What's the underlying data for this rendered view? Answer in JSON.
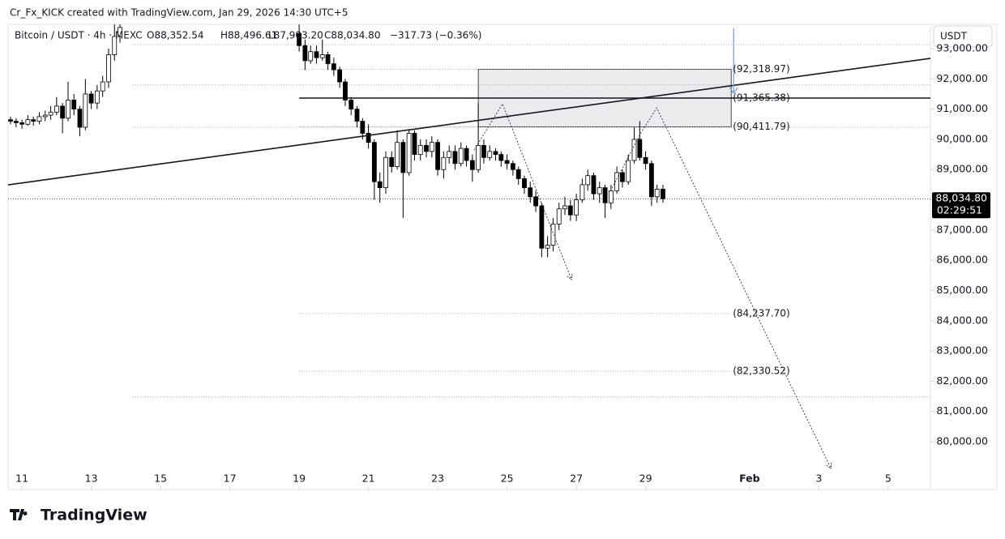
{
  "chart_data": {
    "type": "candlestick",
    "title": "Cr_Fx_KICK created with TradingView.com, Jan 29, 2026 14:30 UTC+5",
    "legend": {
      "symbol": "Bitcoin / USDT · 4h · MEXC",
      "open": "O88,352.54",
      "high": "H88,496.61",
      "low": "L87,903.20",
      "close": "C88,034.80",
      "change": "−317.73 (−0.36%)"
    },
    "currency": "USDT",
    "brand": "TradingView",
    "x": [
      10.67,
      10.83,
      11,
      11.17,
      11.33,
      11.5,
      11.67,
      11.83,
      12,
      12.17,
      12.33,
      12.5,
      12.67,
      12.83,
      13,
      13.17,
      13.33,
      13.5,
      13.67,
      13.83,
      19,
      19.17,
      19.33,
      19.5,
      19.67,
      19.83,
      20,
      20.17,
      20.33,
      20.5,
      20.67,
      20.83,
      21,
      21.17,
      21.33,
      21.5,
      21.67,
      21.83,
      22,
      22.17,
      22.33,
      22.5,
      22.67,
      22.83,
      23,
      23.17,
      23.33,
      23.5,
      23.67,
      23.83,
      24,
      24.17,
      24.33,
      24.5,
      24.67,
      24.83,
      25,
      25.17,
      25.33,
      25.5,
      25.67,
      25.83,
      26,
      26.17,
      26.33,
      26.5,
      26.67,
      26.83,
      27,
      27.17,
      27.33,
      27.5,
      27.67,
      27.83,
      28,
      28.17,
      28.33,
      28.5,
      28.67,
      28.83,
      29,
      29.17,
      29.33,
      29.5
    ],
    "open": [
      90650,
      90600,
      90550,
      90500,
      90650,
      90600,
      90750,
      90800,
      90900,
      91100,
      90700,
      91300,
      91000,
      90400,
      91500,
      91200,
      91600,
      91900,
      92800,
      93400,
      93500,
      93100,
      92600,
      92900,
      92700,
      92800,
      92500,
      92300,
      91900,
      91300,
      91000,
      90600,
      90200,
      89900,
      88600,
      88400,
      89400,
      89100,
      89900,
      88900,
      90200,
      89500,
      89800,
      89600,
      89900,
      89000,
      89400,
      89600,
      89200,
      89700,
      89300,
      89000,
      89800,
      89400,
      89600,
      89500,
      89300,
      89200,
      89000,
      88700,
      88400,
      88100,
      87800,
      86400,
      86500,
      87200,
      87700,
      87800,
      87500,
      88000,
      88500,
      88800,
      88200,
      88400,
      87900,
      88300,
      88900,
      88600,
      89300,
      90000,
      89400,
      89200,
      88100,
      88352.54
    ],
    "high": [
      90750,
      90700,
      90650,
      90800,
      90750,
      90900,
      90950,
      91100,
      91400,
      91200,
      91900,
      91500,
      91100,
      92000,
      91600,
      91800,
      92100,
      93000,
      93900,
      94000,
      93800,
      93300,
      93100,
      93100,
      93300,
      92900,
      92700,
      92400,
      92000,
      91400,
      91100,
      90700,
      90500,
      90000,
      88900,
      89600,
      89600,
      90300,
      90000,
      90300,
      90300,
      90000,
      90000,
      90100,
      90000,
      89600,
      89800,
      89800,
      89900,
      89800,
      89500,
      91200,
      90000,
      89800,
      89700,
      89600,
      89500,
      89300,
      89100,
      88800,
      88600,
      88300,
      87900,
      86800,
      87400,
      87900,
      88100,
      88000,
      88200,
      88700,
      89000,
      88900,
      88600,
      88500,
      88500,
      89100,
      89000,
      89500,
      90400,
      90600,
      89600,
      89300,
      88500,
      88496.61
    ],
    "low": [
      90500,
      90400,
      90350,
      90450,
      90450,
      90500,
      90600,
      90650,
      90800,
      90200,
      90600,
      90800,
      90100,
      90300,
      91000,
      91000,
      91400,
      91700,
      92600,
      93200,
      92900,
      92300,
      92500,
      92500,
      92600,
      92300,
      92100,
      91700,
      91100,
      90800,
      90400,
      90000,
      89700,
      88000,
      87900,
      88200,
      88900,
      89000,
      87400,
      88800,
      89300,
      89300,
      89400,
      89400,
      88800,
      88700,
      89200,
      89000,
      89100,
      89100,
      88600,
      88900,
      89200,
      89300,
      89300,
      89100,
      89000,
      88800,
      88500,
      88200,
      87900,
      87600,
      86100,
      86100,
      86300,
      87000,
      87500,
      87300,
      87300,
      87900,
      88300,
      88000,
      87900,
      87400,
      87700,
      88200,
      88400,
      88500,
      89200,
      89300,
      89000,
      87800,
      87900,
      87903.2
    ],
    "close": [
      90600,
      90550,
      90500,
      90650,
      90600,
      90750,
      90800,
      90900,
      91100,
      90700,
      91300,
      91000,
      90400,
      91500,
      91200,
      91600,
      91900,
      92800,
      93400,
      93700,
      93100,
      92600,
      92900,
      92700,
      92800,
      92500,
      92300,
      91900,
      91300,
      91000,
      90600,
      90200,
      89900,
      88600,
      88400,
      89400,
      89100,
      89900,
      88900,
      90200,
      89500,
      89800,
      89600,
      89900,
      89000,
      89400,
      89600,
      89200,
      89700,
      89300,
      89000,
      89800,
      89400,
      89600,
      89500,
      89300,
      89200,
      89000,
      88700,
      88400,
      88100,
      87800,
      86400,
      86500,
      87200,
      87700,
      87800,
      87500,
      88000,
      88500,
      88800,
      88200,
      88400,
      87900,
      88300,
      88900,
      88600,
      89300,
      90000,
      89400,
      89200,
      88100,
      88350,
      88034.8
    ],
    "up_color": "#ffffff",
    "down_color": "#000000",
    "outline_color": "#000000",
    "xlim": [
      10.6,
      37.22
    ],
    "xticks": [
      11,
      13,
      15,
      17,
      19,
      21,
      23,
      25,
      27,
      29,
      {
        "value": 32,
        "label": "Feb"
      },
      {
        "value": 34,
        "label": "3"
      },
      {
        "value": 36,
        "label": "5"
      }
    ],
    "ylim": [
      78794,
      93804
    ],
    "yticks": [
      {
        "value": 80000,
        "label": "80,000.00"
      },
      {
        "value": 81000,
        "label": "81,000.00"
      },
      {
        "value": 82000,
        "label": "82,000.00"
      },
      {
        "value": 83000,
        "label": "83,000.00"
      },
      {
        "value": 84000,
        "label": "84,000.00"
      },
      {
        "value": 85000,
        "label": "85,000.00"
      },
      {
        "value": 86000,
        "label": "86,000.00"
      },
      {
        "value": 87000,
        "label": "87,000.00"
      },
      {
        "value": 88000,
        "label": "88,000.00"
      },
      {
        "value": 89000,
        "label": "89,000.00"
      },
      {
        "value": 90000,
        "label": "90,000.00"
      },
      {
        "value": 91000,
        "label": "91,000.00"
      },
      {
        "value": 92000,
        "label": "92,000.00"
      },
      {
        "value": 93000,
        "label": "93,000.00"
      }
    ],
    "levels": [
      {
        "value": 92318.97,
        "label": "(92,318.97)",
        "color": "#22857a"
      },
      {
        "value": 91365.38,
        "label": "(91,365.38)",
        "color": "#131722"
      },
      {
        "value": 90411.79,
        "label": "(90,411.79)",
        "color": "#131722"
      },
      {
        "value": 84237.7,
        "label": "(84,237.70)",
        "color": "#787b86"
      },
      {
        "value": 82330.52,
        "label": "(82,330.52)",
        "color": "#787b86"
      }
    ],
    "levels_x": [
      19,
      31.47
    ],
    "zone_x": [
      24.17,
      31.47
    ],
    "guide_levels": [
      93130,
      91800,
      90400,
      81480
    ],
    "guide_x": [
      14.2,
      37.22
    ],
    "trendline": {
      "x": [
        10.6,
        37.22
      ],
      "y": [
        88496,
        92678
      ]
    },
    "projections": [
      {
        "x": [
          24.05,
          24.87,
          26.86
        ],
        "y": [
          89649,
          91177,
          85359
        ]
      },
      {
        "x": [
          28.03,
          28.85,
          29.32,
          34.35
        ],
        "y": [
          88389,
          90185,
          91043,
          79113
        ]
      }
    ],
    "arrow": {
      "x": 31.54,
      "y": [
        93670,
        91525
      ],
      "color": "#7b9ee0"
    },
    "last_price": {
      "value": 88034.8,
      "label": "88,034.80",
      "countdown": "02:29:51"
    }
  }
}
